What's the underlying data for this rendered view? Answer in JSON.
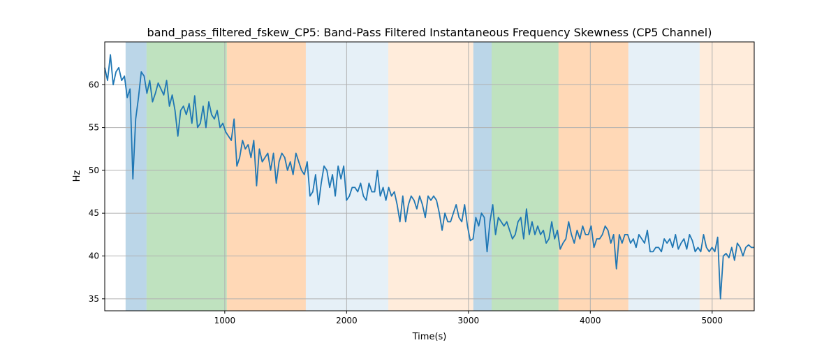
{
  "chart_data": {
    "type": "line",
    "title": "band_pass_filtered_fskew_CP5: Band-Pass Filtered Instantaneous Frequency Skewness (CP5 Channel)",
    "xlabel": "Time(s)",
    "ylabel": "Hz",
    "xlim": [
      15,
      5345
    ],
    "ylim": [
      33.6,
      65
    ],
    "xticks": [
      1000,
      2000,
      3000,
      4000,
      5000
    ],
    "yticks": [
      35,
      40,
      45,
      50,
      55,
      60
    ],
    "grid": true,
    "line_color": "#1f77b4",
    "x_range": [
      15,
      5345
    ],
    "values": [
      62,
      60.5,
      63.5,
      60,
      61.5,
      62,
      60.5,
      61,
      58.5,
      59.5,
      49,
      56,
      58.5,
      61.5,
      61,
      59,
      60.5,
      58,
      59,
      60.2,
      59.5,
      58.8,
      60.5,
      57.5,
      58.8,
      57,
      54,
      57,
      57.5,
      56.5,
      57.8,
      55.5,
      58.7,
      55,
      55.5,
      57.5,
      55,
      58,
      56.5,
      56,
      57,
      55,
      55.5,
      54.5,
      54,
      53.5,
      56,
      50.5,
      51.5,
      53.5,
      52.5,
      53,
      51.5,
      53.5,
      48.2,
      52.5,
      51,
      51.5,
      52,
      50,
      52,
      48.5,
      51,
      52,
      51.5,
      50,
      51,
      49.5,
      52,
      51,
      50,
      49.5,
      51,
      47,
      47.5,
      49.5,
      46,
      48.5,
      50.5,
      50,
      48,
      49.5,
      47,
      50.5,
      49,
      50.5,
      46.5,
      47,
      48,
      48,
      47.5,
      48.5,
      47,
      46.5,
      48.5,
      47.5,
      47.5,
      50,
      47,
      48,
      46.5,
      48,
      47,
      47.5,
      46,
      44,
      47,
      44,
      46,
      47,
      46.5,
      45.5,
      47,
      46,
      44.5,
      47,
      46.5,
      47,
      46.5,
      45,
      43,
      45,
      44,
      44,
      45,
      46,
      44.5,
      44,
      46,
      43.5,
      41.8,
      42,
      44.5,
      43.5,
      45,
      44.5,
      40.5,
      44,
      46,
      42.5,
      44.5,
      44,
      43.5,
      44,
      43,
      42,
      42.5,
      44,
      44.5,
      42,
      45.5,
      42.5,
      44,
      42.5,
      43.5,
      42.5,
      43,
      41.5,
      42,
      44,
      42,
      43,
      40.8,
      41.5,
      42,
      44,
      42.5,
      41.5,
      43,
      42,
      43.5,
      42.5,
      42.5,
      43.5,
      41,
      42,
      42,
      42.5,
      43.5,
      43,
      41.5,
      42.5,
      38.5,
      42.5,
      41.5,
      42.5,
      42.5,
      41.5,
      42,
      41,
      42.5,
      42,
      41.5,
      43,
      40.5,
      40.5,
      41,
      41,
      40.5,
      42,
      41.5,
      42,
      41,
      42.5,
      40.8,
      41.5,
      42,
      40.8,
      42.5,
      41.8,
      40.5,
      41,
      40.5,
      42.5,
      41,
      40.5,
      41,
      40.5,
      42.2,
      35,
      40,
      40.3,
      39.8,
      41,
      39.5,
      41.5,
      41,
      40,
      41,
      41.3,
      41,
      41
    ],
    "spans": [
      {
        "from": 186,
        "to": 358,
        "color": "#1f77b4",
        "opacity": 0.3
      },
      {
        "from": 358,
        "to": 1017,
        "color": "#2ca02c",
        "opacity": 0.3
      },
      {
        "from": 1017,
        "to": 1665,
        "color": "#ff7f0e",
        "opacity": 0.3
      },
      {
        "from": 1665,
        "to": 2342,
        "color": "#1f77b4",
        "opacity": 0.11
      },
      {
        "from": 2342,
        "to": 3040,
        "color": "#ff7f0e",
        "opacity": 0.15
      },
      {
        "from": 3040,
        "to": 3190,
        "color": "#1f77b4",
        "opacity": 0.3
      },
      {
        "from": 3190,
        "to": 3739,
        "color": "#2ca02c",
        "opacity": 0.3
      },
      {
        "from": 3739,
        "to": 4312,
        "color": "#ff7f0e",
        "opacity": 0.3
      },
      {
        "from": 4312,
        "to": 4897,
        "color": "#1f77b4",
        "opacity": 0.11
      },
      {
        "from": 4897,
        "to": 5345,
        "color": "#ff7f0e",
        "opacity": 0.15
      }
    ]
  }
}
